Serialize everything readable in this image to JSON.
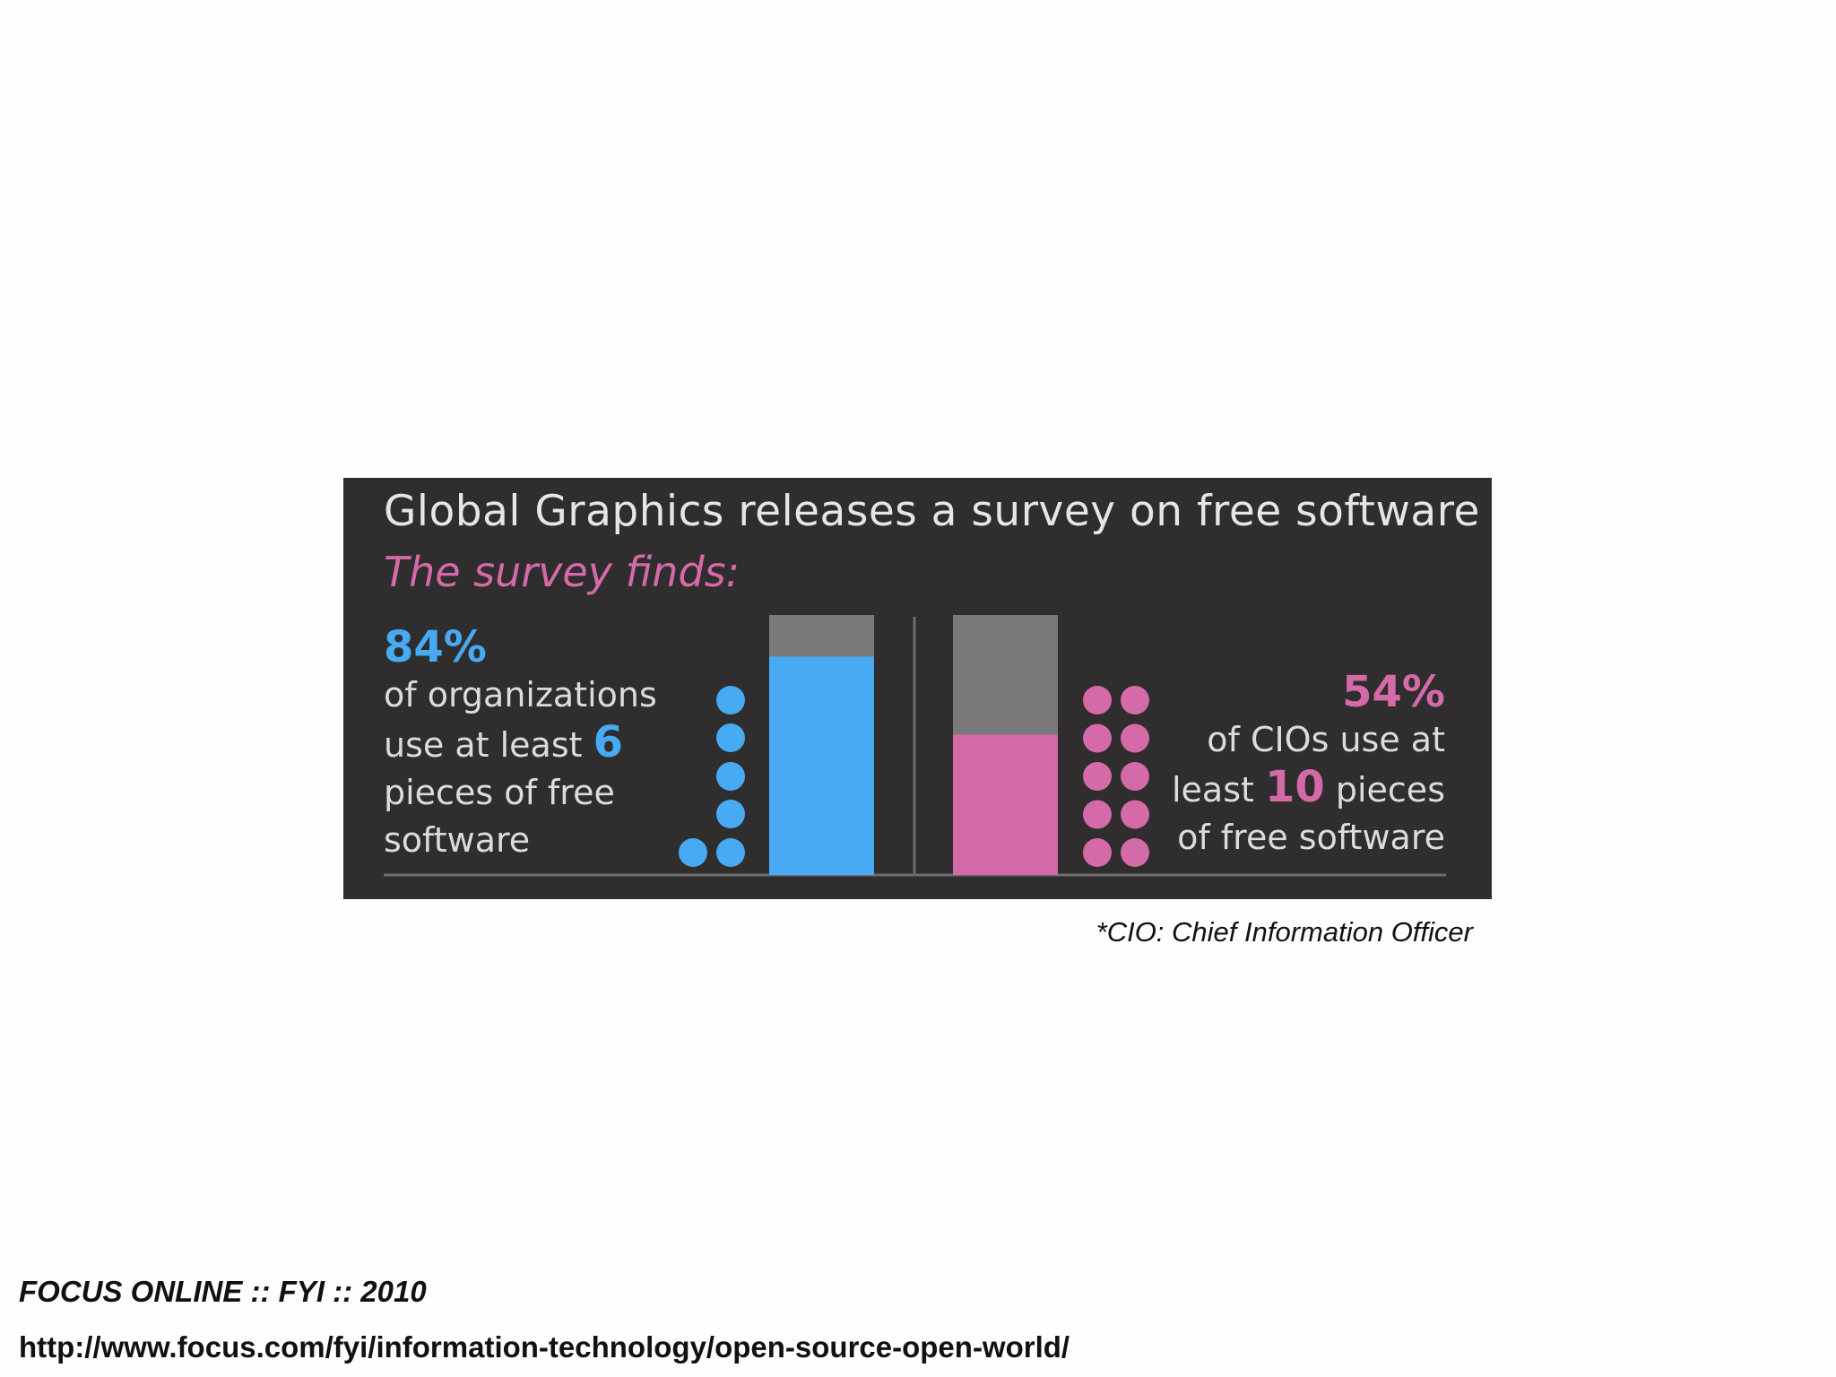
{
  "colors": {
    "panel_bg": "#2f2d2e",
    "blue": "#47aaf2",
    "pink": "#d46aa8",
    "bar_bg": "#7b797a",
    "text": "#dcdcdc"
  },
  "infographic": {
    "title": "Global Graphics releases a survey on free software",
    "subtitle": "The survey finds:",
    "left": {
      "pct": "84%",
      "line1": "of organizations",
      "line2a": "use at least ",
      "line2b": "6",
      "line3": "pieces of free",
      "line4": "software"
    },
    "right": {
      "pct": "54%",
      "line1": "of CIOs use at",
      "line2a": "least ",
      "line2b": "10",
      "line2c": " pieces",
      "line3": "of free software"
    }
  },
  "chart_data": {
    "type": "bar",
    "categories": [
      "organizations using at least 6 pieces of free software",
      "CIOs using at least 10 pieces of free software"
    ],
    "values": [
      84,
      54
    ],
    "ylim": [
      0,
      100
    ],
    "dots": [
      6,
      10
    ],
    "colors": [
      "#47aaf2",
      "#d46aa8"
    ]
  },
  "footnote": "*CIO: Chief Information Officer",
  "source": {
    "title": "FOCUS ONLINE :: FYI :: 2010",
    "url": "http://www.focus.com/fyi/information-technology/open-source-open-world/"
  }
}
